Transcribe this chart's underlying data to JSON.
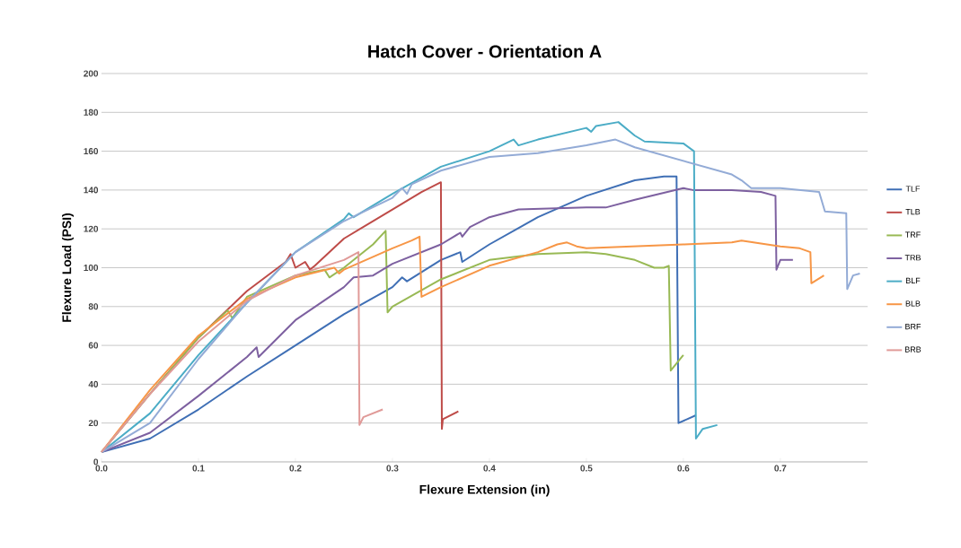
{
  "chart_data": {
    "type": "line",
    "title": "Hatch Cover - Orientation A",
    "xlabel": "Flexure Extension (in)",
    "ylabel": "Flexure Load (PSI)",
    "xlim": [
      0,
      0.79
    ],
    "xticks": [
      {
        "value": 0,
        "label": "0.0"
      },
      0.1,
      0.2,
      0.3,
      0.4,
      0.5,
      0.6,
      0.7
    ],
    "ylim": [
      0,
      200
    ],
    "yticks": [
      0,
      20,
      40,
      60,
      80,
      100,
      120,
      140,
      160,
      180,
      200
    ],
    "grid": "y",
    "legend": "right",
    "marker": "none",
    "line_style": "solid",
    "series": [
      {
        "name": "TLF",
        "color": "#3f6fb5",
        "x": [
          0,
          0.05,
          0.1,
          0.15,
          0.2,
          0.25,
          0.3,
          0.31,
          0.315,
          0.35,
          0.37,
          0.372,
          0.4,
          0.45,
          0.5,
          0.55,
          0.58,
          0.593,
          0.595,
          0.613
        ],
        "values": [
          5,
          12,
          27,
          44,
          60,
          76,
          90,
          95,
          93,
          104,
          108,
          103,
          112,
          126,
          137,
          145,
          147,
          147,
          20,
          24
        ]
      },
      {
        "name": "TLB",
        "color": "#be4b48",
        "x": [
          0,
          0.05,
          0.1,
          0.15,
          0.19,
          0.195,
          0.2,
          0.21,
          0.215,
          0.22,
          0.25,
          0.3,
          0.33,
          0.35,
          0.351,
          0.352,
          0.368
        ],
        "values": [
          5,
          35,
          64,
          88,
          103,
          107,
          100,
          103,
          99,
          101,
          115,
          130,
          139,
          144,
          17,
          22,
          26
        ]
      },
      {
        "name": "TRF",
        "color": "#98b954",
        "x": [
          0,
          0.05,
          0.1,
          0.13,
          0.135,
          0.15,
          0.2,
          0.23,
          0.235,
          0.25,
          0.28,
          0.293,
          0.295,
          0.3,
          0.35,
          0.4,
          0.45,
          0.5,
          0.52,
          0.55,
          0.57,
          0.58,
          0.585,
          0.587,
          0.6
        ],
        "values": [
          5,
          35,
          64,
          78,
          74,
          85,
          96,
          99,
          95,
          100,
          112,
          119,
          77,
          80,
          94,
          104,
          107,
          108,
          107,
          104,
          100,
          100,
          101,
          47,
          55
        ]
      },
      {
        "name": "TRB",
        "color": "#7d60a0",
        "x": [
          0,
          0.05,
          0.1,
          0.15,
          0.16,
          0.162,
          0.2,
          0.25,
          0.26,
          0.28,
          0.3,
          0.35,
          0.37,
          0.372,
          0.38,
          0.4,
          0.43,
          0.5,
          0.52,
          0.55,
          0.6,
          0.61,
          0.65,
          0.68,
          0.695,
          0.696,
          0.7,
          0.713
        ],
        "values": [
          5,
          15,
          34,
          54,
          59,
          54,
          73,
          90,
          95,
          96,
          102,
          112,
          118,
          116,
          121,
          126,
          130,
          131,
          131,
          135,
          141,
          140,
          140,
          139,
          137,
          99,
          104,
          104
        ]
      },
      {
        "name": "BLF",
        "color": "#4bacc6",
        "x": [
          0,
          0.05,
          0.1,
          0.15,
          0.2,
          0.25,
          0.255,
          0.26,
          0.3,
          0.35,
          0.4,
          0.425,
          0.43,
          0.45,
          0.5,
          0.505,
          0.51,
          0.533,
          0.55,
          0.56,
          0.6,
          0.611,
          0.613,
          0.62,
          0.635
        ],
        "values": [
          5,
          25,
          55,
          82,
          108,
          125,
          128,
          126,
          138,
          152,
          160,
          166,
          163,
          166,
          172,
          170,
          173,
          175,
          168,
          165,
          164,
          160,
          12,
          17,
          19
        ]
      },
      {
        "name": "BLB",
        "color": "#f79646",
        "x": [
          0,
          0.05,
          0.1,
          0.15,
          0.2,
          0.24,
          0.245,
          0.25,
          0.3,
          0.32,
          0.328,
          0.33,
          0.35,
          0.4,
          0.45,
          0.47,
          0.48,
          0.49,
          0.5,
          0.55,
          0.6,
          0.65,
          0.66,
          0.7,
          0.72,
          0.731,
          0.732,
          0.745
        ],
        "values": [
          5,
          37,
          65,
          84,
          95,
          100,
          97,
          99,
          110,
          114,
          116,
          85,
          90,
          101,
          108,
          112,
          113,
          111,
          110,
          111,
          112,
          113,
          114,
          111,
          110,
          108,
          92,
          96
        ]
      },
      {
        "name": "BRF",
        "color": "#93abd6",
        "x": [
          0,
          0.05,
          0.1,
          0.15,
          0.2,
          0.25,
          0.3,
          0.31,
          0.315,
          0.32,
          0.35,
          0.4,
          0.45,
          0.5,
          0.53,
          0.55,
          0.6,
          0.65,
          0.66,
          0.67,
          0.7,
          0.72,
          0.74,
          0.746,
          0.768,
          0.769,
          0.775,
          0.782
        ],
        "values": [
          5,
          20,
          53,
          82,
          108,
          124,
          136,
          141,
          138,
          143,
          150,
          157,
          159,
          163,
          166,
          162,
          155,
          148,
          145,
          141,
          141,
          140,
          139,
          129,
          128,
          89,
          96,
          97
        ]
      },
      {
        "name": "BRB",
        "color": "#e09a98",
        "x": [
          0,
          0.05,
          0.1,
          0.15,
          0.2,
          0.25,
          0.265,
          0.266,
          0.27,
          0.29
        ],
        "values": [
          5,
          35,
          62,
          83,
          96,
          104,
          108,
          19,
          23,
          27
        ]
      }
    ]
  }
}
